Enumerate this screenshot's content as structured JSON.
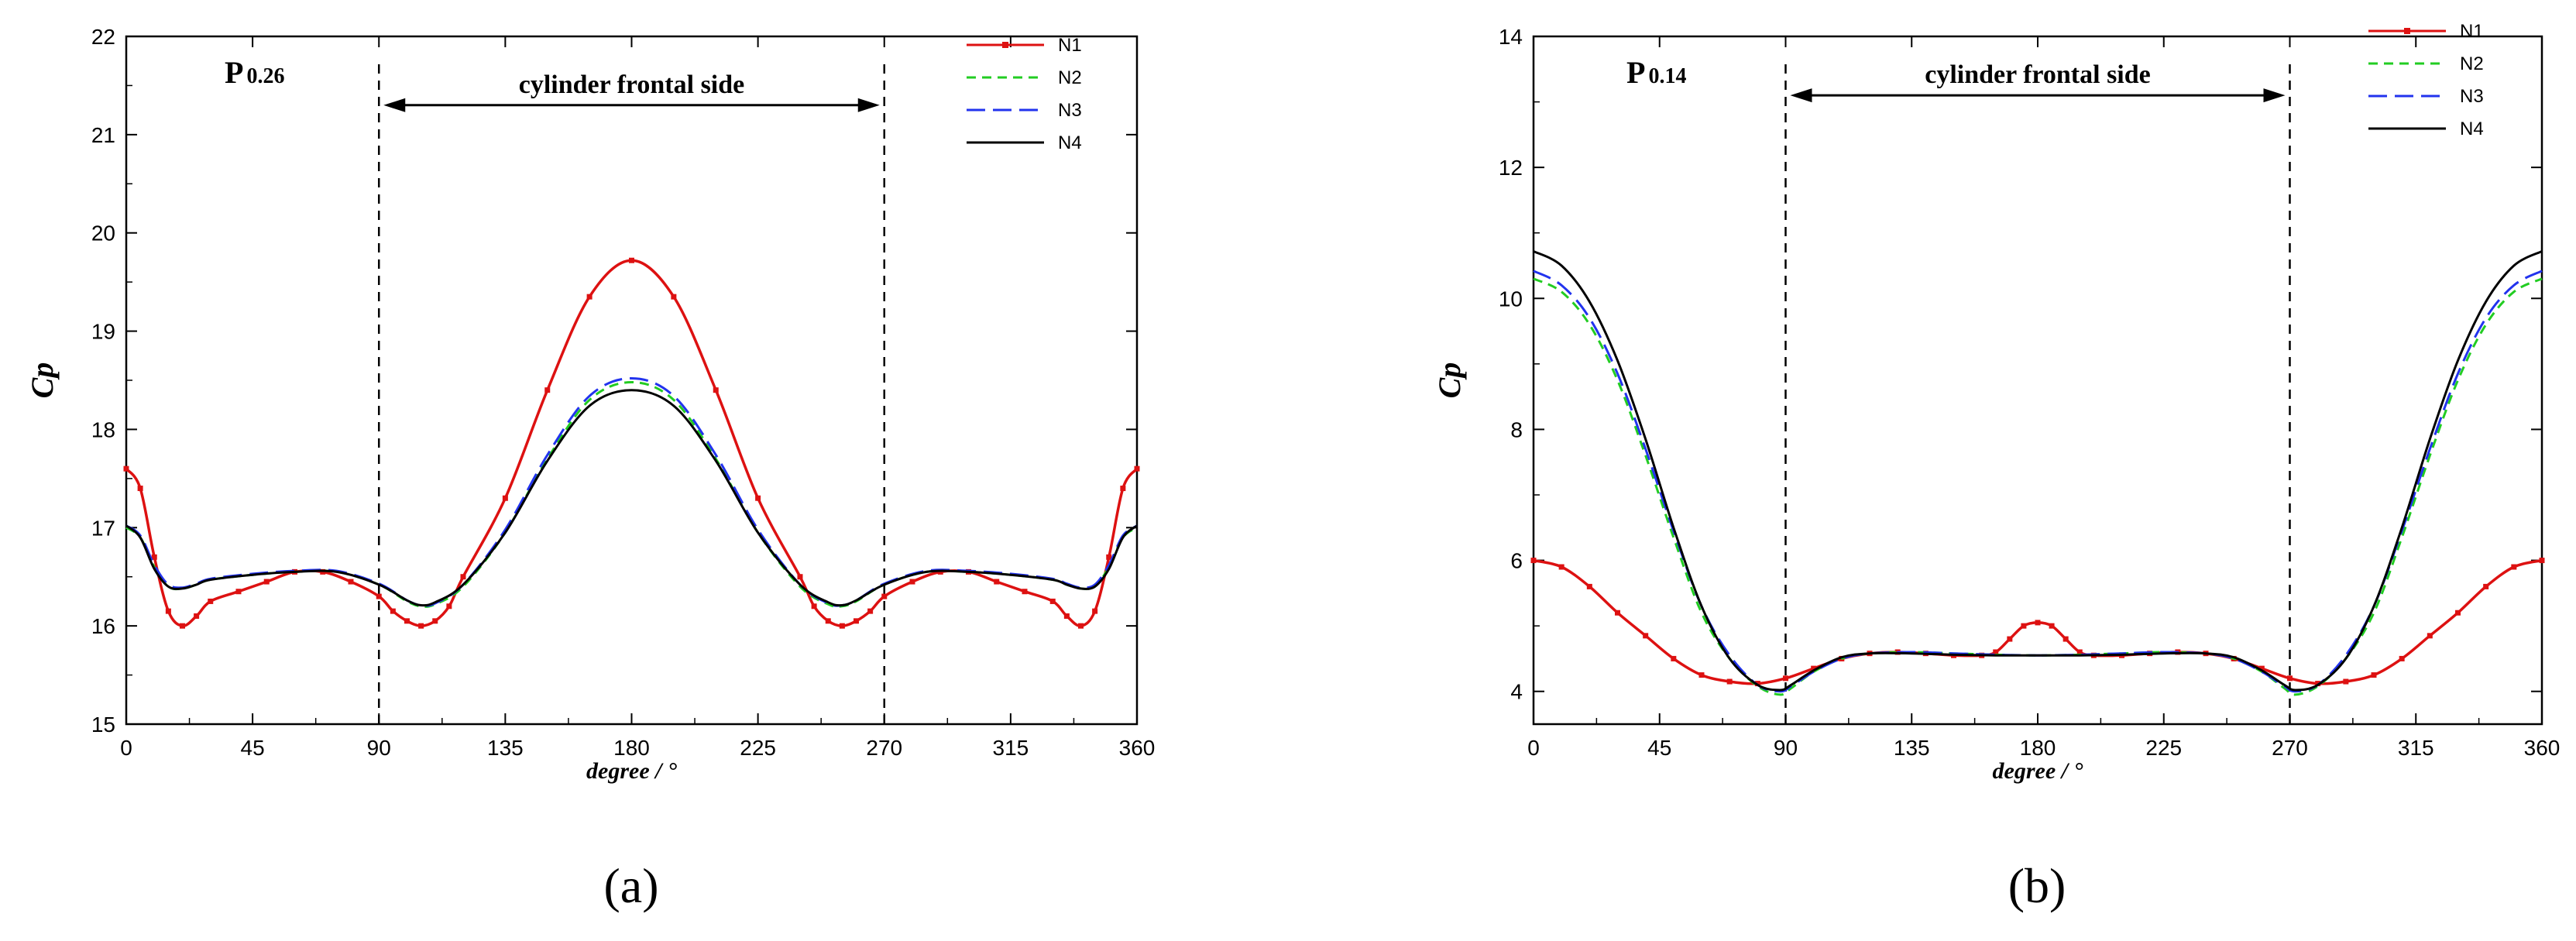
{
  "chart_data": [
    {
      "type": "line",
      "panel_label": "(a)",
      "point_label": {
        "main": "P",
        "sub": "0.26"
      },
      "xlabel": "degree / °",
      "ylabel": "Cp",
      "xlim": [
        0,
        360
      ],
      "ylim": [
        15,
        22
      ],
      "x_ticks": [
        0,
        45,
        90,
        135,
        180,
        225,
        270,
        315,
        360
      ],
      "y_ticks": [
        15,
        16,
        17,
        18,
        19,
        20,
        21,
        22
      ],
      "annotation": {
        "text": "cylinder frontal side",
        "x_range": [
          90,
          270
        ],
        "y": 21.3
      },
      "vertical_lines": [
        90,
        270
      ],
      "legend_position": "top-right",
      "series": [
        {
          "name": "N1",
          "color": "#dd1111",
          "dash": "solid",
          "markers": true,
          "x": [
            0,
            5,
            10,
            15,
            20,
            25,
            30,
            40,
            50,
            60,
            70,
            80,
            90,
            95,
            100,
            105,
            110,
            115,
            120,
            135,
            150,
            165,
            180,
            195,
            210,
            225,
            240,
            245,
            250,
            255,
            260,
            265,
            270,
            280,
            290,
            300,
            310,
            320,
            330,
            335,
            340,
            345,
            350,
            355,
            360
          ],
          "y": [
            17.6,
            17.4,
            16.7,
            16.15,
            16.0,
            16.1,
            16.25,
            16.35,
            16.45,
            16.55,
            16.55,
            16.45,
            16.3,
            16.15,
            16.05,
            16.0,
            16.05,
            16.2,
            16.5,
            17.3,
            18.4,
            19.35,
            19.72,
            19.35,
            18.4,
            17.3,
            16.5,
            16.2,
            16.05,
            16.0,
            16.05,
            16.15,
            16.3,
            16.45,
            16.55,
            16.55,
            16.45,
            16.35,
            16.25,
            16.1,
            16.0,
            16.15,
            16.7,
            17.4,
            17.6
          ]
        },
        {
          "name": "N2",
          "color": "#22cc22",
          "dash": "short",
          "x": [
            0,
            5,
            10,
            15,
            20,
            25,
            30,
            45,
            60,
            75,
            90,
            100,
            105,
            110,
            120,
            135,
            150,
            165,
            180,
            195,
            210,
            225,
            240,
            250,
            255,
            260,
            270,
            285,
            300,
            315,
            330,
            335,
            340,
            345,
            350,
            355,
            360
          ],
          "y": [
            17.0,
            16.9,
            16.6,
            16.4,
            16.38,
            16.42,
            16.47,
            16.52,
            16.55,
            16.55,
            16.42,
            16.25,
            16.2,
            16.22,
            16.4,
            16.95,
            17.7,
            18.3,
            18.48,
            18.3,
            17.7,
            16.95,
            16.4,
            16.22,
            16.2,
            16.25,
            16.42,
            16.55,
            16.55,
            16.52,
            16.47,
            16.42,
            16.38,
            16.4,
            16.6,
            16.9,
            17.0
          ]
        },
        {
          "name": "N3",
          "color": "#2233ee",
          "dash": "long",
          "x": [
            0,
            5,
            10,
            15,
            20,
            25,
            30,
            45,
            60,
            75,
            90,
            100,
            105,
            110,
            120,
            135,
            150,
            165,
            180,
            195,
            210,
            225,
            240,
            250,
            255,
            260,
            270,
            285,
            300,
            315,
            330,
            335,
            340,
            345,
            350,
            355,
            360
          ],
          "y": [
            17.02,
            16.92,
            16.62,
            16.42,
            16.39,
            16.43,
            16.48,
            16.53,
            16.56,
            16.56,
            16.43,
            16.26,
            16.21,
            16.23,
            16.42,
            16.98,
            17.74,
            18.34,
            18.52,
            18.34,
            17.74,
            16.98,
            16.42,
            16.23,
            16.21,
            16.26,
            16.43,
            16.56,
            16.56,
            16.53,
            16.48,
            16.43,
            16.39,
            16.42,
            16.62,
            16.92,
            17.02
          ]
        },
        {
          "name": "N4",
          "color": "#000000",
          "dash": "solid",
          "x": [
            0,
            5,
            10,
            15,
            20,
            25,
            30,
            45,
            60,
            75,
            90,
            100,
            105,
            110,
            120,
            135,
            150,
            165,
            180,
            195,
            210,
            225,
            240,
            250,
            255,
            260,
            270,
            285,
            300,
            315,
            330,
            335,
            340,
            345,
            350,
            355,
            360
          ],
          "y": [
            17.02,
            16.9,
            16.58,
            16.4,
            16.38,
            16.42,
            16.47,
            16.52,
            16.55,
            16.55,
            16.42,
            16.26,
            16.21,
            16.24,
            16.42,
            16.95,
            17.68,
            18.24,
            18.4,
            18.24,
            17.68,
            16.95,
            16.42,
            16.24,
            16.21,
            16.26,
            16.42,
            16.55,
            16.55,
            16.52,
            16.47,
            16.42,
            16.38,
            16.4,
            16.58,
            16.9,
            17.02
          ]
        }
      ]
    },
    {
      "type": "line",
      "panel_label": "(b)",
      "point_label": {
        "main": "P",
        "sub": "0.14"
      },
      "xlabel": "degree / °",
      "ylabel": "Cp",
      "xlim": [
        0,
        360
      ],
      "ylim": [
        3.5,
        14
      ],
      "x_ticks": [
        0,
        45,
        90,
        135,
        180,
        225,
        270,
        315,
        360
      ],
      "y_ticks": [
        4,
        6,
        8,
        10,
        12,
        14
      ],
      "annotation": {
        "text": "cylinder frontal side",
        "x_range": [
          90,
          270
        ],
        "y": 13.1
      },
      "vertical_lines": [
        90,
        270
      ],
      "legend_position": "top-right",
      "series": [
        {
          "name": "N1",
          "color": "#dd1111",
          "dash": "solid",
          "markers": true,
          "x": [
            0,
            10,
            20,
            30,
            40,
            50,
            60,
            70,
            80,
            90,
            100,
            110,
            120,
            130,
            140,
            150,
            160,
            165,
            170,
            175,
            180,
            185,
            190,
            195,
            200,
            210,
            220,
            230,
            240,
            250,
            260,
            270,
            280,
            290,
            300,
            310,
            320,
            330,
            340,
            350,
            360
          ],
          "y": [
            6.0,
            5.9,
            5.6,
            5.2,
            4.85,
            4.5,
            4.25,
            4.15,
            4.12,
            4.2,
            4.35,
            4.5,
            4.58,
            4.6,
            4.58,
            4.55,
            4.55,
            4.6,
            4.8,
            5.0,
            5.05,
            5.0,
            4.8,
            4.6,
            4.55,
            4.55,
            4.58,
            4.6,
            4.58,
            4.5,
            4.35,
            4.2,
            4.12,
            4.15,
            4.25,
            4.5,
            4.85,
            5.2,
            5.6,
            5.9,
            6.0
          ]
        },
        {
          "name": "N2",
          "color": "#22cc22",
          "dash": "short",
          "x": [
            0,
            10,
            20,
            30,
            40,
            50,
            60,
            70,
            80,
            88,
            92,
            100,
            110,
            120,
            135,
            150,
            165,
            180,
            195,
            210,
            225,
            240,
            250,
            260,
            268,
            272,
            280,
            290,
            300,
            310,
            320,
            330,
            340,
            350,
            360
          ],
          "y": [
            10.3,
            10.1,
            9.6,
            8.75,
            7.6,
            6.35,
            5.2,
            4.5,
            4.08,
            3.95,
            4.05,
            4.3,
            4.5,
            4.58,
            4.6,
            4.58,
            4.56,
            4.55,
            4.56,
            4.58,
            4.6,
            4.58,
            4.5,
            4.3,
            4.05,
            3.95,
            4.08,
            4.5,
            5.2,
            6.35,
            7.6,
            8.75,
            9.6,
            10.1,
            10.3
          ]
        },
        {
          "name": "N3",
          "color": "#2233ee",
          "dash": "long",
          "x": [
            0,
            10,
            20,
            30,
            40,
            50,
            60,
            70,
            80,
            88,
            92,
            100,
            110,
            120,
            135,
            150,
            165,
            180,
            195,
            210,
            225,
            240,
            250,
            260,
            268,
            272,
            280,
            290,
            300,
            310,
            320,
            330,
            340,
            350,
            360
          ],
          "y": [
            10.42,
            10.2,
            9.7,
            8.85,
            7.7,
            6.45,
            5.3,
            4.55,
            4.1,
            4.0,
            4.08,
            4.3,
            4.5,
            4.58,
            4.6,
            4.58,
            4.56,
            4.55,
            4.56,
            4.58,
            4.6,
            4.58,
            4.5,
            4.3,
            4.08,
            4.0,
            4.1,
            4.55,
            5.3,
            6.45,
            7.7,
            8.85,
            9.7,
            10.2,
            10.42
          ]
        },
        {
          "name": "N4",
          "color": "#000000",
          "dash": "solid",
          "x": [
            0,
            10,
            20,
            30,
            40,
            50,
            60,
            70,
            80,
            88,
            92,
            100,
            110,
            120,
            135,
            150,
            165,
            180,
            195,
            210,
            225,
            240,
            250,
            260,
            268,
            272,
            280,
            290,
            300,
            310,
            320,
            330,
            340,
            350,
            360
          ],
          "y": [
            10.72,
            10.5,
            9.95,
            9.05,
            7.85,
            6.5,
            5.3,
            4.5,
            4.1,
            4.02,
            4.1,
            4.32,
            4.52,
            4.58,
            4.58,
            4.56,
            4.55,
            4.55,
            4.55,
            4.56,
            4.58,
            4.58,
            4.52,
            4.32,
            4.1,
            4.02,
            4.1,
            4.5,
            5.3,
            6.5,
            7.85,
            9.05,
            9.95,
            10.5,
            10.72
          ]
        }
      ]
    }
  ]
}
